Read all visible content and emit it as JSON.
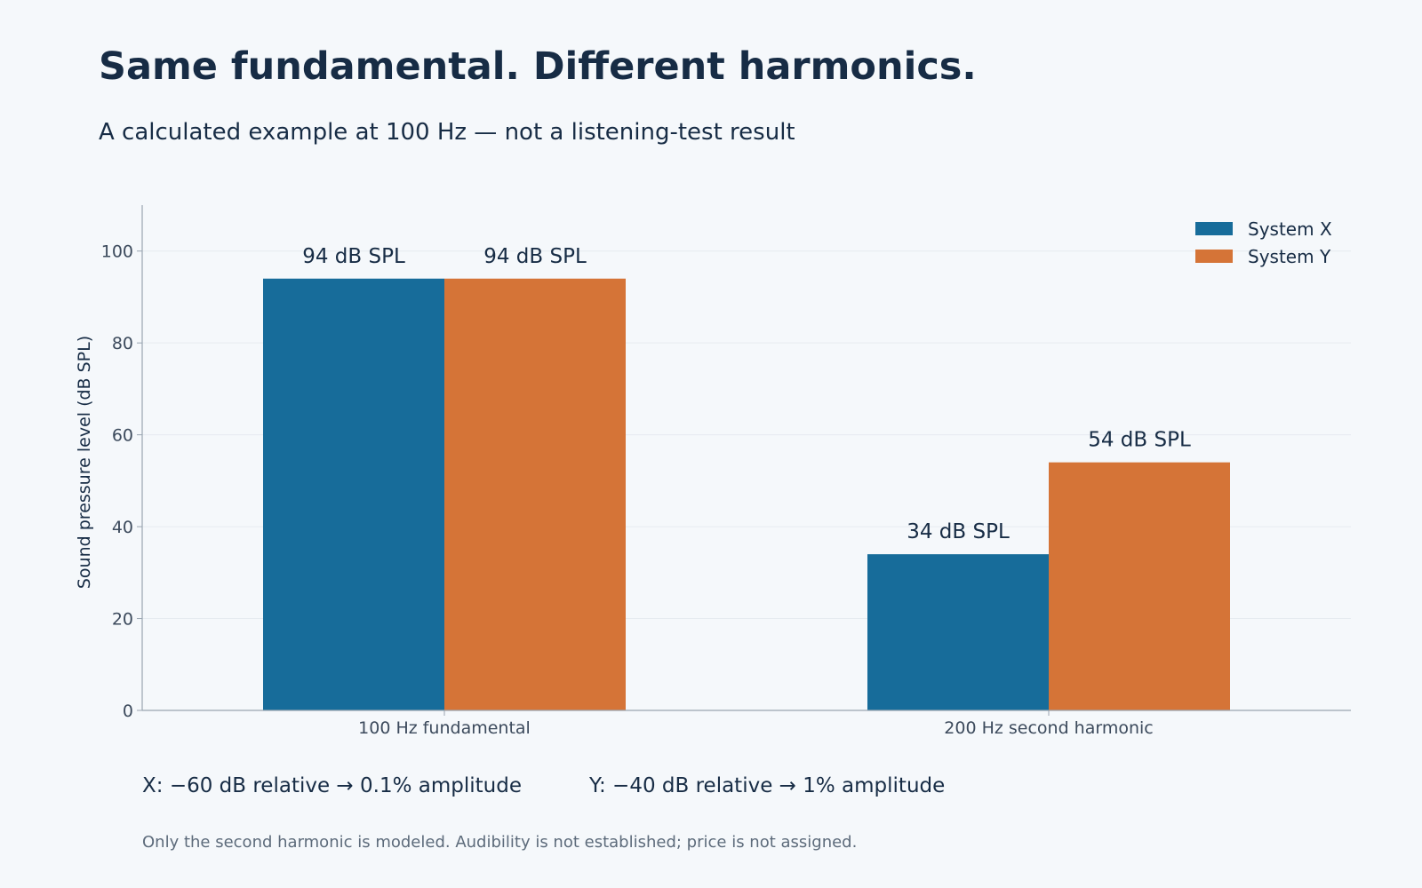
{
  "title": "Same fundamental. Different harmonics.",
  "subtitle": "A calculated example at 100 Hz — not a listening-test result",
  "chart_data": {
    "type": "bar",
    "categories": [
      "100 Hz fundamental",
      "200 Hz second harmonic"
    ],
    "series": [
      {
        "name": "System X",
        "values": [
          94,
          34
        ],
        "labels": [
          "94 dB SPL",
          "34 dB SPL"
        ],
        "color": "#176c9a"
      },
      {
        "name": "System Y",
        "values": [
          94,
          54
        ],
        "labels": [
          "94 dB SPL",
          "54 dB SPL"
        ],
        "color": "#d57437"
      }
    ],
    "ylabel": "Sound pressure level (dB SPL)",
    "xlabel": "",
    "ylim": [
      0,
      110
    ],
    "yticks": [
      0,
      20,
      40,
      60,
      80,
      100
    ],
    "grid": true,
    "legend": "top-right"
  },
  "callouts": {
    "x": "X: −60 dB relative → 0.1% amplitude",
    "y": "Y: −40 dB relative → 1% amplitude"
  },
  "footnote": "Only the second harmonic is modeled. Audibility is not established; price is not assigned.",
  "colors": {
    "background": "#f5f8fb",
    "text": "#172c45",
    "axis": "#9aa5b1",
    "tick_text": "#3c4a5c",
    "grid": "#e6ebf0"
  }
}
